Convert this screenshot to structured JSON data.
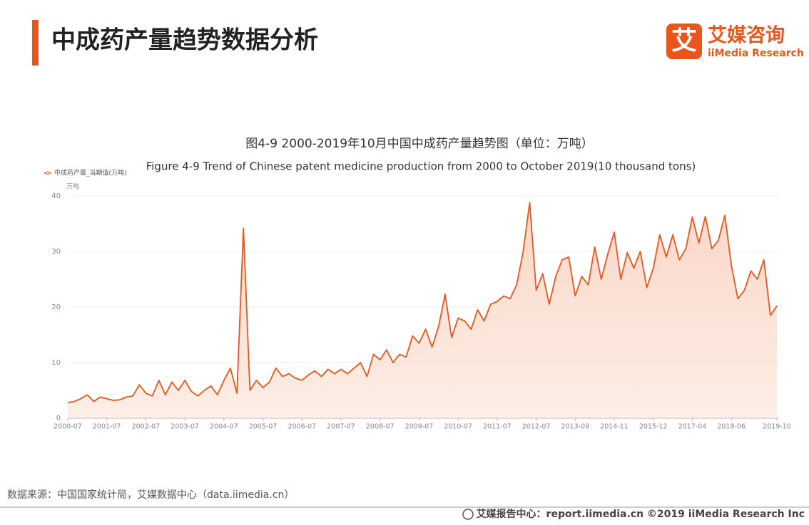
{
  "header": {
    "title": "中成药产量趋势数据分析",
    "logo_mark": "艾",
    "logo_name": "艾媒咨询",
    "logo_en": "iiMedia Research"
  },
  "chart_data": {
    "type": "area",
    "title": "图4-9 2000-2019年10月中国中成药产量趋势图（单位：万吨）",
    "subtitle": "Figure 4-9 Trend of Chinese patent medicine production from 2000 to October 2019(10 thousand tons)",
    "y_unit": "万吨",
    "ylim": [
      0,
      40
    ],
    "yticks": [
      0,
      10,
      20,
      30,
      40
    ],
    "grid": true,
    "legend": "top-left",
    "categories": [
      "2000-07",
      null,
      null,
      null,
      null,
      null,
      "2001-07",
      null,
      null,
      null,
      null,
      null,
      "2002-07",
      null,
      null,
      null,
      null,
      null,
      "2003-07",
      null,
      null,
      null,
      null,
      null,
      "2004-07",
      null,
      null,
      null,
      null,
      null,
      "2005-07",
      null,
      null,
      null,
      null,
      null,
      "2006-07",
      null,
      null,
      null,
      null,
      null,
      "2007-07",
      null,
      null,
      null,
      null,
      null,
      "2008-07",
      null,
      null,
      null,
      null,
      null,
      "2009-07",
      null,
      null,
      null,
      null,
      null,
      "2010-07",
      null,
      null,
      null,
      null,
      null,
      "2011-07",
      null,
      null,
      null,
      null,
      null,
      "2012-07",
      null,
      null,
      null,
      null,
      null,
      "2013-09",
      null,
      null,
      null,
      null,
      null,
      "2014-11",
      null,
      null,
      null,
      null,
      null,
      "2015-12",
      null,
      null,
      null,
      null,
      null,
      "2017-04",
      null,
      null,
      null,
      null,
      null,
      "2018-06",
      null,
      null,
      null,
      null,
      null,
      null,
      "2019-10"
    ],
    "series": [
      {
        "name": "中成药产量_当期值(万吨)",
        "color": "#e8561c",
        "values": [
          2.8,
          3.0,
          3.5,
          4.2,
          3.0,
          3.8,
          3.5,
          3.2,
          3.3,
          3.8,
          4.0,
          6.0,
          4.5,
          4.0,
          6.8,
          4.2,
          6.5,
          5.0,
          6.8,
          4.8,
          4.0,
          5.0,
          5.8,
          4.2,
          6.8,
          9.0,
          4.5,
          34.2,
          5.0,
          6.8,
          5.5,
          6.5,
          9.0,
          7.5,
          8.0,
          7.2,
          6.8,
          7.8,
          8.5,
          7.5,
          8.8,
          8.0,
          8.8,
          8.0,
          9.0,
          10.0,
          7.5,
          11.5,
          10.5,
          12.3,
          10.0,
          11.5,
          11.0,
          14.8,
          13.5,
          16.0,
          12.8,
          16.5,
          22.3,
          14.5,
          18.0,
          17.5,
          16.0,
          19.5,
          17.5,
          20.5,
          21.0,
          22.0,
          21.5,
          24.0,
          30.0,
          38.8,
          23.0,
          26.0,
          20.5,
          25.5,
          28.5,
          29.0,
          22.0,
          25.5,
          24.0,
          30.8,
          25.0,
          29.5,
          33.5,
          25.0,
          29.8,
          27.0,
          30.0,
          23.5,
          27.0,
          33.0,
          29.0,
          33.0,
          28.5,
          30.5,
          36.2,
          31.5,
          36.3,
          30.5,
          32.0,
          36.5,
          27.5,
          21.5,
          23.0,
          26.5,
          25.0,
          28.5,
          18.5,
          20.2
        ]
      }
    ]
  },
  "source": "数据来源：中国国家统计局，艾媒数据中心（data.iimedia.cn）",
  "footer": "艾媒报告中心：report.iimedia.cn  ©2019  iiMedia Research  Inc"
}
